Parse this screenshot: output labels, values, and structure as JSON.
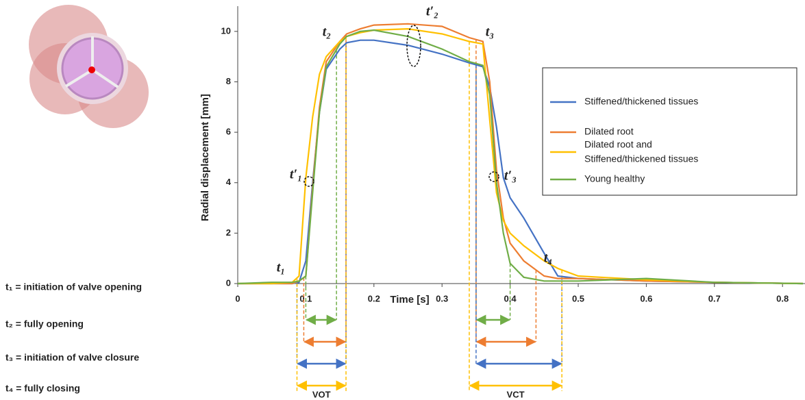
{
  "chart_data": {
    "type": "line",
    "x_label": "Time [s]",
    "y_label": "Radial displacement [mm]",
    "xlim": [
      0,
      0.83
    ],
    "ylim": [
      0,
      11
    ],
    "xticks": [
      0,
      0.1,
      0.2,
      0.3,
      0.4,
      0.5,
      0.6,
      0.7,
      0.8
    ],
    "yticks": [
      0,
      2,
      4,
      6,
      8,
      10
    ],
    "x": [
      0,
      0.05,
      0.08,
      0.09,
      0.1,
      0.11,
      0.12,
      0.13,
      0.15,
      0.16,
      0.18,
      0.2,
      0.25,
      0.3,
      0.34,
      0.36,
      0.37,
      0.38,
      0.39,
      0.4,
      0.42,
      0.45,
      0.47,
      0.5,
      0.6,
      0.7,
      0.83
    ],
    "series": [
      {
        "name": "Stiffened/thickened tissues",
        "color": "#4472c4",
        "values": [
          0,
          0,
          0,
          0.05,
          0.9,
          4.0,
          6.8,
          8.5,
          9.3,
          9.55,
          9.65,
          9.65,
          9.45,
          9.1,
          8.75,
          8.6,
          7.8,
          6.2,
          4.2,
          3.4,
          2.6,
          1.2,
          0.3,
          0.2,
          0.1,
          0.05,
          0
        ]
      },
      {
        "name": "Dilated root",
        "color": "#ed7d31",
        "values": [
          0,
          0,
          0,
          0.1,
          0.3,
          3.8,
          7.0,
          8.8,
          9.6,
          9.9,
          10.1,
          10.25,
          10.3,
          10.2,
          9.75,
          9.6,
          8.0,
          4.5,
          2.6,
          1.6,
          0.9,
          0.3,
          0.2,
          0.2,
          0.1,
          0.05,
          0
        ]
      },
      {
        "name": "Dilated root and\nStiffened/thickened tissues",
        "color": "#ffc000",
        "values": [
          0,
          0,
          0.05,
          0.3,
          4.2,
          6.6,
          8.3,
          9.0,
          9.6,
          9.8,
          9.95,
          10.05,
          10.1,
          9.9,
          9.6,
          9.5,
          6.5,
          3.6,
          2.5,
          2.0,
          1.5,
          0.9,
          0.6,
          0.3,
          0.15,
          0.05,
          0
        ]
      },
      {
        "name": "Young healthy",
        "color": "#70ad47",
        "values": [
          0,
          0.05,
          0.05,
          0.1,
          0.3,
          3.6,
          6.8,
          8.6,
          9.5,
          9.8,
          10.0,
          10.05,
          9.8,
          9.3,
          8.8,
          8.65,
          7.5,
          4.0,
          2.0,
          0.8,
          0.25,
          0.1,
          0.1,
          0.1,
          0.2,
          0.05,
          0
        ]
      }
    ],
    "annotations": [
      "t₁",
      "t₂",
      "t₃",
      "t₄",
      "t′₁",
      "t′₂",
      "t′₃"
    ],
    "intervals": [
      {
        "label": "VOT",
        "spans": [
          {
            "color": "#70ad47",
            "start": 0.1,
            "end": 0.145
          },
          {
            "color": "#ed7d31",
            "start": 0.097,
            "end": 0.159
          },
          {
            "color": "#4472c4",
            "start": 0.087,
            "end": 0.159
          },
          {
            "color": "#ffc000",
            "start": 0.087,
            "end": 0.159
          }
        ]
      },
      {
        "label": "VCT",
        "spans": [
          {
            "color": "#70ad47",
            "start": 0.35,
            "end": 0.4
          },
          {
            "color": "#ed7d31",
            "start": 0.35,
            "end": 0.438
          },
          {
            "color": "#4472c4",
            "start": 0.35,
            "end": 0.476
          },
          {
            "color": "#ffc000",
            "start": 0.34,
            "end": 0.476
          }
        ]
      }
    ],
    "definitions": [
      "t₁ = initiation of valve opening",
      "t₂ =  fully opening",
      "t₃ = initiation of valve closure",
      "t₄ =  fully closing"
    ]
  }
}
